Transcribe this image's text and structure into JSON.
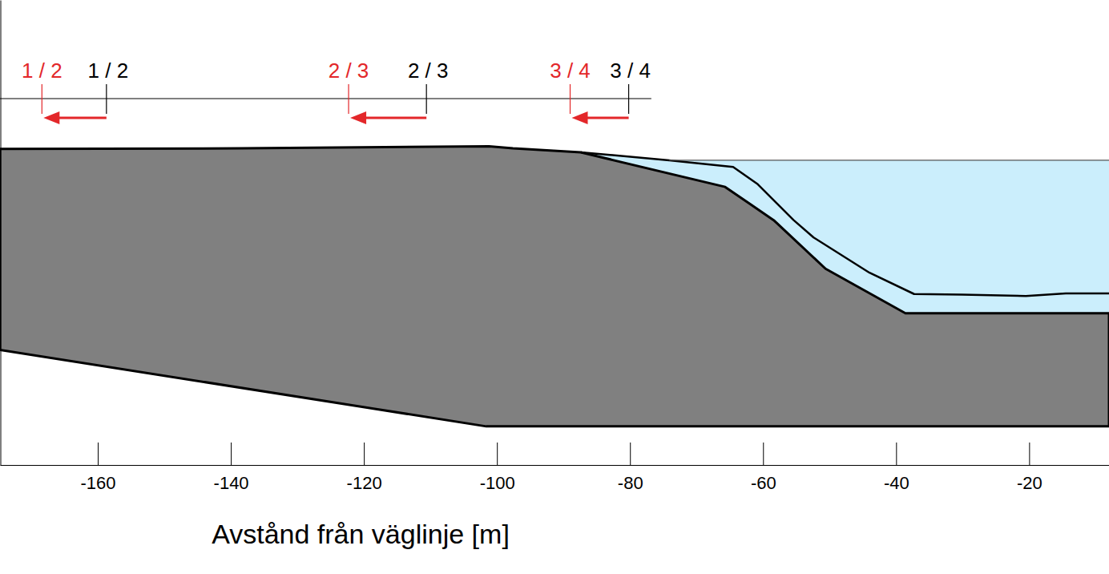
{
  "chart_data": {
    "type": "area",
    "x_label": "Avstånd från väglinje [m]",
    "xlim": [
      -174.7,
      -8.0
    ],
    "xticks": [
      -160,
      -140,
      -120,
      -100,
      -80,
      -60,
      -40,
      -20
    ],
    "ylim": [
      -5.8,
      64.1
    ],
    "tick_labels": "x",
    "grid": false,
    "series": [
      {
        "type": "area",
        "color": "#cbeefc",
        "line_style": "none",
        "x": [
          -87.4,
          -74.1,
          -8.0,
          -8.0,
          -38.6,
          -50.6,
          -58.4,
          -65.7,
          -87.4
        ],
        "values": [
          41.2,
          40.0,
          40.0,
          17.0,
          17.0,
          23.7,
          31.0,
          36.0,
          41.2
        ]
      },
      {
        "type": "area",
        "color": "#808080",
        "line_style": "solid",
        "x": [
          -174.7,
          -138.6,
          -101.2,
          -97.6,
          -87.4,
          -65.7,
          -58.4,
          -50.6,
          -38.6,
          -8.0,
          -8.0,
          -101.6,
          -174.7
        ],
        "values": [
          41.7,
          41.8,
          42.1,
          41.8,
          41.2,
          36.0,
          31.0,
          23.7,
          17.0,
          17.0,
          0,
          0,
          11.5
        ]
      },
      {
        "type": "line",
        "color": "#000000",
        "line_style": "solid",
        "x": [
          -87.4,
          -74.1,
          -64.5,
          -60.8,
          -55.4,
          -52.4,
          -44.0,
          -37.3,
          -30.1,
          -20.5,
          -14.5,
          -8.0
        ],
        "values": [
          41.2,
          40.0,
          39.0,
          36.4,
          31.0,
          28.4,
          23.1,
          19.9,
          19.8,
          19.6,
          20.0,
          20.0
        ]
      },
      {
        "type": "line",
        "color": "#555555",
        "line_style": "thin",
        "x": [
          -74.1,
          -8.0
        ],
        "values": [
          40.0,
          40.0
        ]
      }
    ],
    "annotations": {
      "x_end": -76.8,
      "from_color": "#000000",
      "to_color": "#e3272a",
      "shifts": [
        {
          "from_label": "1 / 2",
          "to_label": "1 / 2",
          "from": -158.7,
          "to": -168.4
        },
        {
          "from_label": "2 / 3",
          "to_label": "2 / 3",
          "from": -110.6,
          "to": -122.3
        },
        {
          "from_label": "3 / 4",
          "to_label": "3 / 4",
          "from": -80.2,
          "to": -89.0
        }
      ]
    }
  }
}
